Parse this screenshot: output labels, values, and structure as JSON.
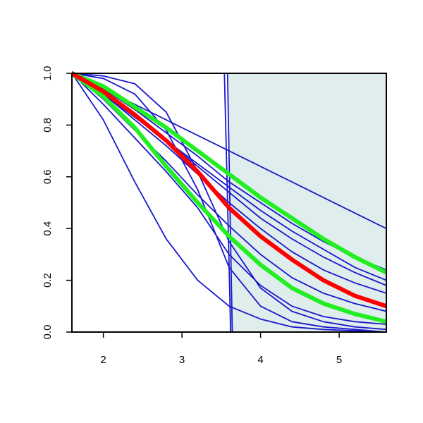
{
  "chart_data": {
    "type": "line",
    "x": [
      1.6,
      2.0,
      2.4,
      2.8,
      3.2,
      3.6,
      4.0,
      4.4,
      4.8,
      5.2,
      5.6
    ],
    "xlim": [
      1.6,
      5.6
    ],
    "ylim": [
      0,
      1
    ],
    "xticks": [
      2,
      3,
      4,
      5
    ],
    "yticks": [
      {
        "value": 0,
        "label": "0.0"
      },
      0.2,
      0.4,
      0.6,
      0.8,
      {
        "value": 1,
        "label": "1.0"
      }
    ],
    "shaded_region": {
      "x": [
        3.6,
        5.6
      ],
      "color": "#dfeded"
    },
    "series": [
      {
        "color": "#1818cc",
        "values": [
          1,
          0.94,
          0.88,
          0.82,
          0.76,
          0.7,
          0.64,
          0.58,
          0.52,
          0.46,
          0.4
        ]
      },
      {
        "color": "#1818cc",
        "values": [
          1,
          0.82,
          0.58,
          0.36,
          0.2,
          0.1,
          0.05,
          0.02,
          0.01,
          0.005,
          0
        ]
      },
      {
        "color": "#1818cc",
        "values": [
          1,
          0.99,
          0.96,
          0.85,
          0.62,
          0.35,
          0.17,
          0.08,
          0.04,
          0.02,
          0.01
        ]
      },
      {
        "color": "#1818cc",
        "values": [
          1,
          0.98,
          0.92,
          0.78,
          0.55,
          0.25,
          0.1,
          0.04,
          0.02,
          0.01,
          0
        ]
      },
      {
        "color": "#1818cc",
        "values": [
          1,
          0.94,
          0.86,
          0.77,
          0.68,
          0.58,
          0.5,
          0.42,
          0.35,
          0.29,
          0.24
        ]
      },
      {
        "color": "#1818cc",
        "values": [
          1,
          0.92,
          0.83,
          0.74,
          0.65,
          0.56,
          0.47,
          0.39,
          0.32,
          0.25,
          0.2
        ]
      },
      {
        "color": "#1818cc",
        "values": [
          1,
          0.93,
          0.84,
          0.74,
          0.64,
          0.54,
          0.44,
          0.36,
          0.29,
          0.23,
          0.18
        ]
      },
      {
        "color": "#1818cc",
        "values": [
          1,
          0.92,
          0.82,
          0.72,
          0.61,
          0.5,
          0.4,
          0.31,
          0.24,
          0.19,
          0.15
        ]
      },
      {
        "color": "#1818cc",
        "values": [
          1,
          0.9,
          0.78,
          0.66,
          0.53,
          0.41,
          0.3,
          0.21,
          0.15,
          0.11,
          0.08
        ]
      },
      {
        "color": "#1818cc",
        "values": [
          1,
          0.88,
          0.75,
          0.62,
          0.48,
          0.3,
          0.18,
          0.1,
          0.06,
          0.04,
          0.03
        ]
      },
      {
        "color": "#1818cc",
        "x": [
          1.6,
          3.54,
          3.58,
          3.62,
          5.6
        ],
        "values": [
          1,
          1,
          0.5,
          0,
          0
        ]
      },
      {
        "color": "#1818cc",
        "x": [
          1.6,
          3.58,
          3.61,
          3.64,
          5.6
        ],
        "values": [
          1,
          1,
          0.5,
          0,
          0
        ]
      },
      {
        "color": "#22ee22",
        "values": [
          1,
          0.95,
          0.87,
          0.79,
          0.7,
          0.61,
          0.52,
          0.44,
          0.36,
          0.29,
          0.23
        ]
      },
      {
        "color": "#22ee22",
        "values": [
          1,
          0.91,
          0.79,
          0.64,
          0.5,
          0.37,
          0.26,
          0.17,
          0.11,
          0.07,
          0.04
        ]
      },
      {
        "color": "#ff0000",
        "values": [
          1,
          0.93,
          0.84,
          0.74,
          0.62,
          0.48,
          0.37,
          0.28,
          0.2,
          0.14,
          0.1
        ]
      }
    ]
  }
}
